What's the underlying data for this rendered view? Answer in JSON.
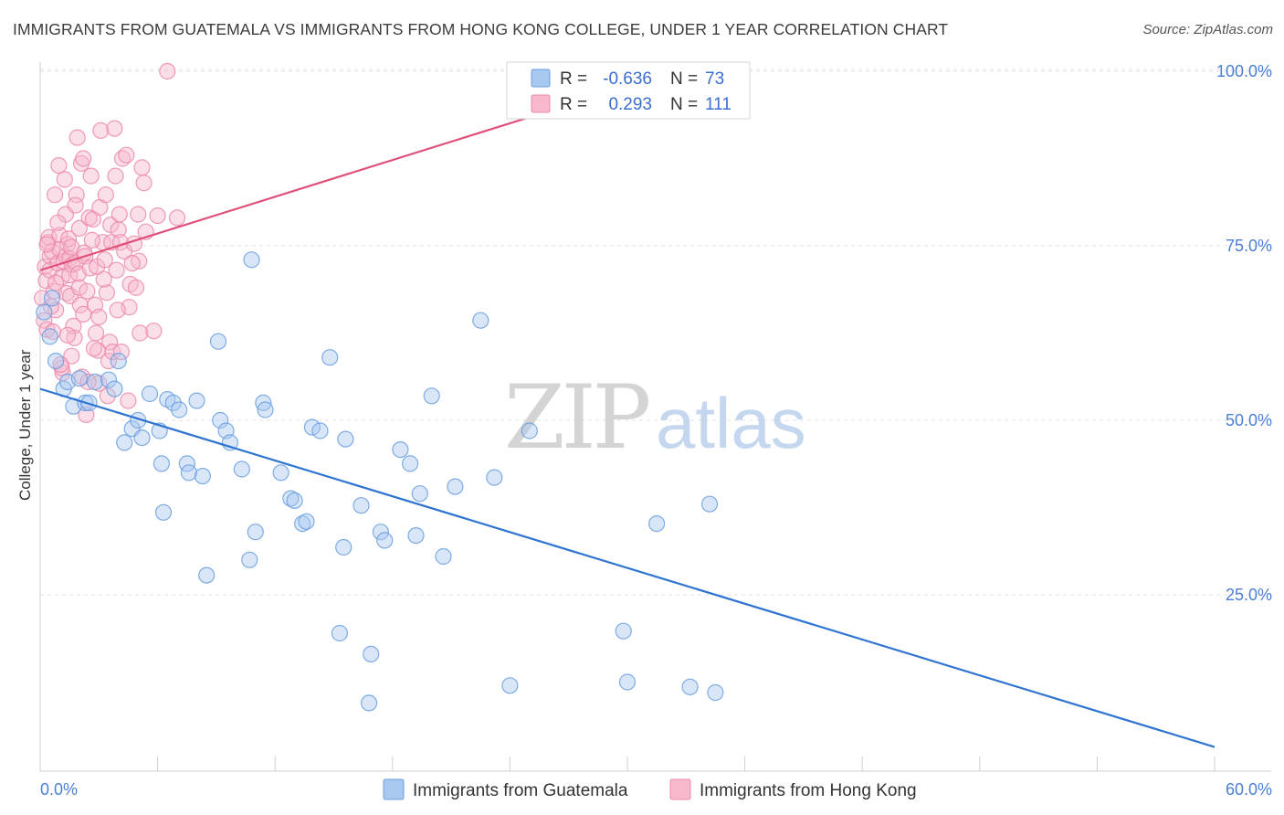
{
  "header": {
    "title": "IMMIGRANTS FROM GUATEMALA VS IMMIGRANTS FROM HONG KONG COLLEGE, UNDER 1 YEAR CORRELATION CHART",
    "source": "Source: ZipAtlas.com"
  },
  "watermark": {
    "zip": "ZIP",
    "atlas": "atlas"
  },
  "legend": {
    "rows": [
      {
        "r_label": "R = ",
        "r_value": "-0.636",
        "n_label": "N = ",
        "n_value": "73"
      },
      {
        "r_label": "R = ",
        "r_value": "0.293",
        "n_label": "N = ",
        "n_value": "111"
      }
    ]
  },
  "bottom_legend": {
    "items": [
      {
        "label": "Immigrants from Guatemala"
      },
      {
        "label": "Immigrants from Hong Kong"
      }
    ]
  },
  "colors": {
    "guatemala_fill": "#a8c8f0",
    "guatemala_stroke": "#6a9fe0",
    "guatemala_line": "#2f74d0",
    "hongkong_fill": "#f7b8cc",
    "hongkong_stroke": "#ec8aaa",
    "hongkong_line": "#e0507a",
    "grid": "#e2e2e2",
    "tick_label": "#4a7fd4"
  },
  "chart_data": {
    "type": "scatter",
    "title": "IMMIGRANTS FROM GUATEMALA VS IMMIGRANTS FROM HONG KONG COLLEGE, UNDER 1 YEAR CORRELATION CHART",
    "xlabel": "",
    "ylabel": "College, Under 1 year",
    "xlim": [
      0,
      60
    ],
    "ylim": [
      0,
      105
    ],
    "x_tick_labels": [
      {
        "value": 0,
        "label": "0.0%"
      },
      {
        "value": 60,
        "label": "60.0%"
      }
    ],
    "x_minor_ticks": [
      0,
      6,
      12,
      18,
      24,
      30,
      36,
      42,
      48,
      54,
      60
    ],
    "y_tick_labels": [
      {
        "value": 25,
        "label": "25.0%"
      },
      {
        "value": 50,
        "label": "50.0%"
      },
      {
        "value": 75,
        "label": "75.0%"
      },
      {
        "value": 100,
        "label": "100.0%"
      }
    ],
    "grid": true,
    "legend_position": "top-center",
    "series": [
      {
        "name": "Immigrants from Guatemala",
        "R": -0.636,
        "N": 73,
        "trend": {
          "x": [
            0,
            60
          ],
          "y": [
            54.5,
            3.2
          ]
        },
        "points": [
          [
            0.2,
            65.5
          ],
          [
            0.5,
            62
          ],
          [
            0.6,
            67.5
          ],
          [
            0.8,
            58.5
          ],
          [
            1.2,
            54.5
          ],
          [
            1.4,
            55.5
          ],
          [
            1.7,
            52
          ],
          [
            2.0,
            56
          ],
          [
            2.3,
            52.5
          ],
          [
            2.5,
            52.5
          ],
          [
            2.8,
            55.5
          ],
          [
            3.5,
            55.8
          ],
          [
            3.8,
            54.5
          ],
          [
            4.0,
            58.5
          ],
          [
            4.3,
            46.8
          ],
          [
            4.7,
            48.8
          ],
          [
            5.0,
            50
          ],
          [
            5.2,
            47.5
          ],
          [
            5.6,
            53.8
          ],
          [
            6.1,
            48.5
          ],
          [
            6.5,
            53.0
          ],
          [
            6.2,
            43.8
          ],
          [
            6.3,
            36.8
          ],
          [
            6.8,
            52.5
          ],
          [
            7.1,
            51.5
          ],
          [
            7.5,
            43.8
          ],
          [
            7.6,
            42.5
          ],
          [
            8.0,
            52.8
          ],
          [
            8.3,
            42
          ],
          [
            8.5,
            27.8
          ],
          [
            9.1,
            61.3
          ],
          [
            9.2,
            50
          ],
          [
            9.5,
            48.5
          ],
          [
            9.7,
            46.8
          ],
          [
            10.3,
            43
          ],
          [
            10.7,
            30
          ],
          [
            10.8,
            73
          ],
          [
            11.0,
            34
          ],
          [
            11.4,
            52.5
          ],
          [
            11.5,
            51.5
          ],
          [
            12.3,
            42.5
          ],
          [
            12.8,
            38.8
          ],
          [
            13.0,
            38.5
          ],
          [
            13.4,
            35.2
          ],
          [
            13.6,
            35.5
          ],
          [
            13.9,
            49
          ],
          [
            14.3,
            48.5
          ],
          [
            14.8,
            59
          ],
          [
            15.3,
            19.5
          ],
          [
            15.5,
            31.8
          ],
          [
            15.6,
            47.3
          ],
          [
            16.4,
            37.8
          ],
          [
            16.8,
            9.5
          ],
          [
            16.9,
            16.5
          ],
          [
            17.4,
            34
          ],
          [
            17.6,
            32.8
          ],
          [
            18.4,
            45.8
          ],
          [
            18.9,
            43.8
          ],
          [
            19.2,
            33.5
          ],
          [
            19.4,
            39.5
          ],
          [
            20.0,
            53.5
          ],
          [
            20.6,
            30.5
          ],
          [
            21.2,
            40.5
          ],
          [
            22.5,
            64.3
          ],
          [
            23.2,
            41.8
          ],
          [
            24.0,
            12
          ],
          [
            25.0,
            48.5
          ],
          [
            29.8,
            19.8
          ],
          [
            30.0,
            12.5
          ],
          [
            31.5,
            35.2
          ],
          [
            33.2,
            11.8
          ],
          [
            34.2,
            38
          ],
          [
            34.5,
            11
          ]
        ]
      },
      {
        "name": "Immigrants from Hong Kong",
        "R": 0.293,
        "N": 111,
        "trend": {
          "x": [
            0,
            32.5
          ],
          "y": [
            71.5,
            100
          ]
        },
        "points": [
          [
            0.1,
            67.5
          ],
          [
            0.2,
            64.3
          ],
          [
            0.25,
            72
          ],
          [
            0.3,
            70
          ],
          [
            0.35,
            63
          ],
          [
            0.4,
            75.5
          ],
          [
            0.45,
            76.2
          ],
          [
            0.5,
            73.5
          ],
          [
            0.5,
            71.5
          ],
          [
            0.6,
            74.2
          ],
          [
            0.7,
            68.5
          ],
          [
            0.75,
            82.3
          ],
          [
            0.8,
            65.8
          ],
          [
            0.9,
            72.5
          ],
          [
            0.95,
            86.5
          ],
          [
            1.0,
            76.5
          ],
          [
            1.0,
            74.5
          ],
          [
            1.1,
            70.5
          ],
          [
            1.15,
            56.8
          ],
          [
            1.2,
            72.8
          ],
          [
            1.25,
            84.5
          ],
          [
            1.3,
            73.5
          ],
          [
            1.35,
            68.2
          ],
          [
            1.4,
            75.2
          ],
          [
            1.45,
            76
          ],
          [
            1.5,
            73.2
          ],
          [
            1.5,
            70.8
          ],
          [
            1.55,
            67.8
          ],
          [
            1.6,
            74.8
          ],
          [
            1.65,
            72.3
          ],
          [
            1.7,
            63.5
          ],
          [
            1.75,
            61.8
          ],
          [
            1.8,
            72.5
          ],
          [
            1.85,
            82.3
          ],
          [
            1.9,
            90.5
          ],
          [
            1.95,
            71
          ],
          [
            2.0,
            69
          ],
          [
            2.0,
            77.5
          ],
          [
            2.05,
            66.5
          ],
          [
            2.1,
            86.8
          ],
          [
            2.15,
            56.2
          ],
          [
            2.2,
            87.5
          ],
          [
            2.25,
            74
          ],
          [
            2.3,
            73.5
          ],
          [
            2.35,
            50.8
          ],
          [
            2.4,
            68.5
          ],
          [
            2.5,
            79
          ],
          [
            2.55,
            71.8
          ],
          [
            2.6,
            85
          ],
          [
            2.7,
            78.8
          ],
          [
            2.8,
            66.5
          ],
          [
            2.85,
            62.5
          ],
          [
            2.9,
            72
          ],
          [
            2.95,
            60
          ],
          [
            3.0,
            64.8
          ],
          [
            3.0,
            55.3
          ],
          [
            3.05,
            80.5
          ],
          [
            3.1,
            91.5
          ],
          [
            3.2,
            75.5
          ],
          [
            3.3,
            73
          ],
          [
            3.35,
            82.3
          ],
          [
            3.4,
            68.3
          ],
          [
            3.5,
            58.5
          ],
          [
            3.55,
            61.2
          ],
          [
            3.6,
            78
          ],
          [
            3.65,
            75.5
          ],
          [
            3.7,
            59.8
          ],
          [
            3.8,
            91.8
          ],
          [
            3.85,
            85
          ],
          [
            3.9,
            71.5
          ],
          [
            4.0,
            77.3
          ],
          [
            4.05,
            79.5
          ],
          [
            4.1,
            75.5
          ],
          [
            4.15,
            59.8
          ],
          [
            4.2,
            87.5
          ],
          [
            4.3,
            74.2
          ],
          [
            4.4,
            88
          ],
          [
            4.5,
            52.8
          ],
          [
            4.55,
            66.2
          ],
          [
            4.6,
            69.5
          ],
          [
            4.8,
            75.3
          ],
          [
            4.9,
            69
          ],
          [
            5.0,
            79.5
          ],
          [
            5.05,
            72.8
          ],
          [
            5.1,
            62.5
          ],
          [
            5.2,
            86.2
          ],
          [
            5.3,
            84
          ],
          [
            5.4,
            77
          ],
          [
            5.8,
            62.8
          ],
          [
            6.0,
            79.3
          ],
          [
            6.5,
            100
          ],
          [
            7.0,
            79
          ],
          [
            1.1,
            57.5
          ],
          [
            2.75,
            60.3
          ],
          [
            0.65,
            62.7
          ],
          [
            1.6,
            59.2
          ],
          [
            2.45,
            55.5
          ],
          [
            0.8,
            69.7
          ],
          [
            3.95,
            65.8
          ],
          [
            1.3,
            79.5
          ],
          [
            0.55,
            66.3
          ],
          [
            2.65,
            75.8
          ],
          [
            3.45,
            53.5
          ],
          [
            1.05,
            58
          ],
          [
            0.35,
            75.2
          ],
          [
            4.7,
            72.5
          ],
          [
            2.2,
            65.2
          ],
          [
            1.8,
            80.8
          ],
          [
            0.9,
            78.3
          ],
          [
            3.25,
            70.2
          ],
          [
            1.4,
            62.2
          ]
        ]
      }
    ]
  }
}
